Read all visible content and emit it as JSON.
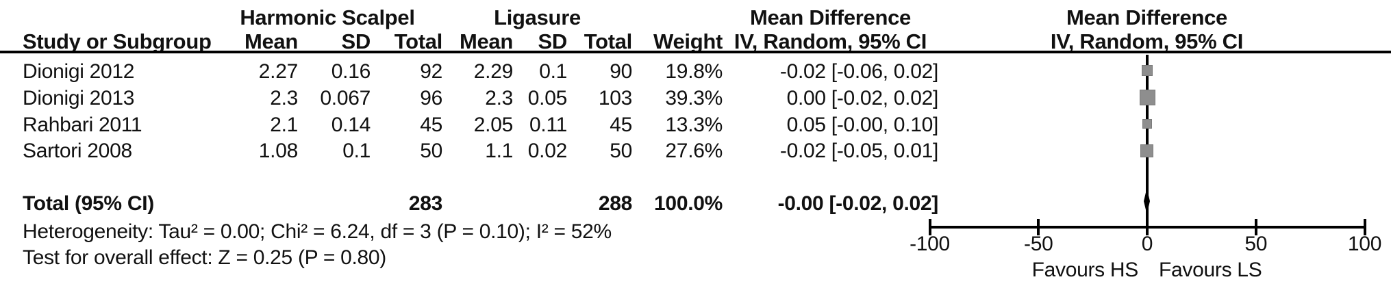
{
  "header": {
    "group_hs": "Harmonic Scalpel",
    "group_ls": "Ligasure",
    "md_title": "Mean Difference",
    "md_subtitle": "IV, Random, 95% CI",
    "study_col": "Study or Subgroup",
    "mean_col": "Mean",
    "sd_col": "SD",
    "total_col": "Total",
    "weight_col": "Weight"
  },
  "rows": [
    {
      "study": "Dionigi 2012",
      "hs_mean": "2.27",
      "hs_sd": "0.16",
      "hs_total": "92",
      "ls_mean": "2.29",
      "ls_sd": "0.1",
      "ls_total": "90",
      "weight": "19.8%",
      "ci": "-0.02 [-0.06, 0.02]"
    },
    {
      "study": "Dionigi 2013",
      "hs_mean": "2.3",
      "hs_sd": "0.067",
      "hs_total": "96",
      "ls_mean": "2.3",
      "ls_sd": "0.05",
      "ls_total": "103",
      "weight": "39.3%",
      "ci": "0.00 [-0.02, 0.02]"
    },
    {
      "study": "Rahbari 2011",
      "hs_mean": "2.1",
      "hs_sd": "0.14",
      "hs_total": "45",
      "ls_mean": "2.05",
      "ls_sd": "0.11",
      "ls_total": "45",
      "weight": "13.3%",
      "ci": "0.05 [-0.00, 0.10]"
    },
    {
      "study": "Sartori 2008",
      "hs_mean": "1.08",
      "hs_sd": "0.1",
      "hs_total": "50",
      "ls_mean": "1.1",
      "ls_sd": "0.02",
      "ls_total": "50",
      "weight": "27.6%",
      "ci": "-0.02 [-0.05, 0.01]"
    }
  ],
  "total": {
    "label": "Total (95% CI)",
    "hs_total": "283",
    "ls_total": "288",
    "weight": "100.0%",
    "ci": "-0.00 [-0.02, 0.02]"
  },
  "footnotes": {
    "heterogeneity": "Heterogeneity: Tau² = 0.00; Chi² = 6.24, df = 3 (P = 0.10); I² = 52%",
    "overall_effect": "Test for overall effect: Z = 0.25 (P = 0.80)"
  },
  "chart_data": {
    "type": "scatter",
    "variant": "forest_plot",
    "title": "Mean Difference",
    "subtitle": "IV, Random, 95% CI",
    "effect_measure": "Mean Difference (IV, Random, 95% CI)",
    "x_axis": {
      "min": -100,
      "max": 100,
      "ticks": [
        -100,
        -50,
        0,
        50,
        100
      ],
      "label_left": "Favours HS",
      "label_right": "Favours LS"
    },
    "studies": [
      {
        "name": "Dionigi 2012",
        "md": -0.02,
        "ci_low": -0.06,
        "ci_high": 0.02,
        "weight_pct": 19.8
      },
      {
        "name": "Dionigi 2013",
        "md": 0.0,
        "ci_low": -0.02,
        "ci_high": 0.02,
        "weight_pct": 39.3
      },
      {
        "name": "Rahbari 2011",
        "md": 0.05,
        "ci_low": -0.0,
        "ci_high": 0.1,
        "weight_pct": 13.3
      },
      {
        "name": "Sartori 2008",
        "md": -0.02,
        "ci_low": -0.05,
        "ci_high": 0.01,
        "weight_pct": 27.6
      }
    ],
    "total": {
      "md": -0.0,
      "ci_low": -0.02,
      "ci_high": 0.02,
      "weight_pct": 100.0,
      "heterogeneity": {
        "tau2": 0.0,
        "chi2": 6.24,
        "df": 3,
        "p": 0.1,
        "i2_pct": 52
      },
      "overall": {
        "z": 0.25,
        "p": 0.8
      }
    },
    "marker_color": "#8e8e8e",
    "axis_color": "#000000",
    "legend_position": "none",
    "grid": false
  }
}
